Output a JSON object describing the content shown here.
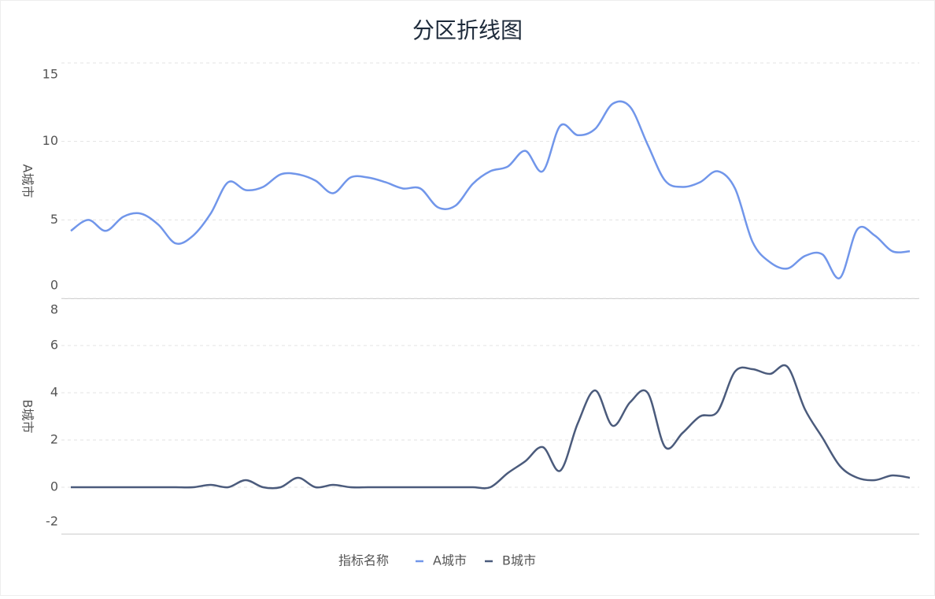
{
  "title": "分区折线图",
  "legend": {
    "title": "指标名称"
  },
  "chart_data": [
    {
      "type": "line",
      "ylabel": "A城市",
      "ylim": [
        0,
        15
      ],
      "yticks": [
        0,
        5,
        10,
        15
      ],
      "grid": true,
      "series": [
        {
          "name": "A城市",
          "color": "#7196ea",
          "values": [
            4.3,
            5.0,
            4.3,
            5.2,
            5.4,
            4.7,
            3.5,
            4.0,
            5.4,
            7.4,
            6.9,
            7.1,
            7.9,
            7.9,
            7.5,
            6.7,
            7.7,
            7.7,
            7.4,
            7.0,
            7.0,
            5.8,
            5.9,
            7.3,
            8.1,
            8.4,
            9.4,
            8.1,
            11.0,
            10.4,
            10.8,
            12.4,
            12.2,
            9.8,
            7.5,
            7.1,
            7.4,
            8.1,
            7.0,
            3.6,
            2.3,
            1.9,
            2.7,
            2.8,
            1.3,
            4.4,
            4.0,
            3.0,
            3.0
          ]
        }
      ]
    },
    {
      "type": "line",
      "ylabel": "B城市",
      "ylim": [
        -2,
        8
      ],
      "yticks": [
        -2,
        0,
        2,
        4,
        6,
        8
      ],
      "grid": true,
      "series": [
        {
          "name": "B城市",
          "color": "#4b5b7c",
          "values": [
            0,
            0,
            0,
            0,
            0,
            0,
            0,
            0,
            0.1,
            0,
            0.3,
            0,
            0,
            0.4,
            0,
            0.1,
            0,
            0,
            0,
            0,
            0,
            0,
            0,
            0,
            0,
            0.6,
            1.1,
            1.7,
            0.7,
            2.7,
            4.1,
            2.6,
            3.6,
            4.0,
            1.7,
            2.3,
            3.0,
            3.2,
            4.9,
            5.0,
            4.8,
            5.1,
            3.3,
            2.1,
            0.9,
            0.4,
            0.3,
            0.5,
            0.4
          ]
        }
      ]
    }
  ]
}
